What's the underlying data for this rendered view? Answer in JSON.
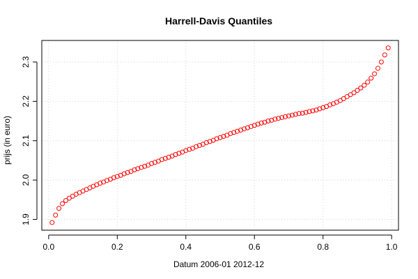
{
  "chart_data": {
    "type": "scatter",
    "title": "Harrell-Davis Quantiles",
    "xlabel": "Datum 2006-01 2012-12",
    "ylabel": "prijs (in euro)",
    "xlim": [
      -0.02,
      1.02
    ],
    "ylim": [
      1.8726,
      2.3548
    ],
    "xticks": [
      0.0,
      0.2,
      0.4,
      0.6,
      0.8,
      1.0
    ],
    "xtick_labels": [
      "0.0",
      "0.2",
      "0.4",
      "0.6",
      "0.8",
      "1.0"
    ],
    "yticks": [
      1.9,
      2.0,
      2.1,
      2.2,
      2.3
    ],
    "ytick_labels": [
      "1.9",
      "2.0",
      "2.1",
      "2.2",
      "2.3"
    ],
    "grid": true,
    "marker": "open-circle",
    "marker_color": "#ff0000",
    "series": [
      {
        "x": [
          0.01,
          0.02,
          0.03,
          0.04,
          0.05,
          0.06,
          0.07,
          0.08,
          0.09,
          0.1,
          0.11,
          0.12,
          0.13,
          0.14,
          0.15,
          0.16,
          0.17,
          0.18,
          0.19,
          0.2,
          0.21,
          0.22,
          0.23,
          0.24,
          0.25,
          0.26,
          0.27,
          0.28,
          0.29,
          0.3,
          0.31,
          0.32,
          0.33,
          0.34,
          0.35,
          0.36,
          0.37,
          0.38,
          0.39,
          0.4,
          0.41,
          0.42,
          0.43,
          0.44,
          0.45,
          0.46,
          0.47,
          0.48,
          0.49,
          0.5,
          0.51,
          0.52,
          0.53,
          0.54,
          0.55,
          0.56,
          0.57,
          0.58,
          0.59,
          0.6,
          0.61,
          0.62,
          0.63,
          0.64,
          0.65,
          0.66,
          0.67,
          0.68,
          0.69,
          0.7,
          0.71,
          0.72,
          0.73,
          0.74,
          0.75,
          0.76,
          0.77,
          0.78,
          0.79,
          0.8,
          0.81,
          0.82,
          0.83,
          0.84,
          0.85,
          0.86,
          0.87,
          0.88,
          0.89,
          0.9,
          0.91,
          0.92,
          0.93,
          0.94,
          0.95,
          0.96,
          0.97,
          0.98,
          0.99
        ],
        "y": [
          1.892,
          1.911,
          1.928,
          1.94,
          1.948,
          1.954,
          1.959,
          1.964,
          1.968,
          1.972,
          1.976,
          1.98,
          1.984,
          1.988,
          1.992,
          1.995,
          1.999,
          2.002,
          2.006,
          2.009,
          2.012,
          2.016,
          2.019,
          2.022,
          2.026,
          2.029,
          2.032,
          2.035,
          2.038,
          2.042,
          2.045,
          2.048,
          2.052,
          2.055,
          2.058,
          2.061,
          2.065,
          2.068,
          2.071,
          2.075,
          2.078,
          2.081,
          2.085,
          2.088,
          2.091,
          2.095,
          2.098,
          2.101,
          2.105,
          2.108,
          2.111,
          2.114,
          2.118,
          2.121,
          2.124,
          2.127,
          2.13,
          2.133,
          2.136,
          2.139,
          2.142,
          2.145,
          2.147,
          2.15,
          2.152,
          2.155,
          2.157,
          2.159,
          2.161,
          2.163,
          2.165,
          2.167,
          2.169,
          2.17,
          2.172,
          2.174,
          2.176,
          2.178,
          2.181,
          2.184,
          2.187,
          2.191,
          2.194,
          2.198,
          2.202,
          2.207,
          2.212,
          2.217,
          2.222,
          2.228,
          2.234,
          2.241,
          2.249,
          2.259,
          2.27,
          2.284,
          2.3,
          2.318,
          2.336
        ]
      }
    ]
  }
}
